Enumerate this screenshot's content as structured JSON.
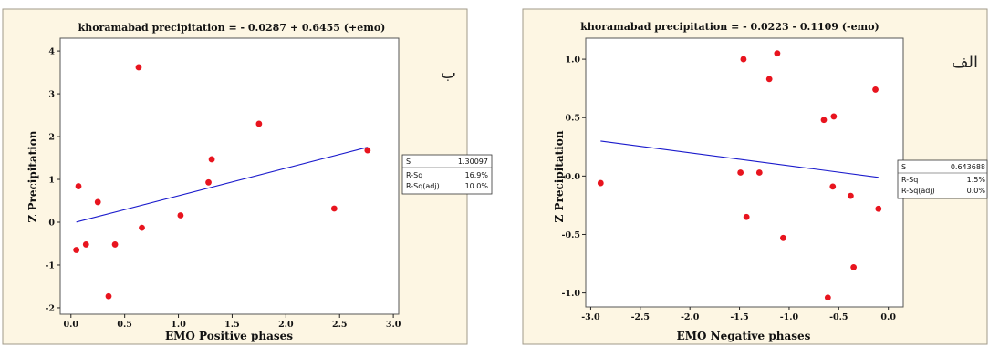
{
  "chart_data": [
    {
      "type": "scatter",
      "title": "khoramabad precipitation =  - 0.0287 + 0.6455 (+emo)",
      "panel_label": "ب",
      "xlabel": "EMO Positive phases",
      "ylabel": "Z Precipitation",
      "xlim": [
        -0.1,
        3.05
      ],
      "ylim": [
        -2.15,
        4.3
      ],
      "xticks": [
        0.0,
        0.5,
        1.0,
        1.5,
        2.0,
        2.5,
        3.0
      ],
      "xtick_labels": [
        "0.0",
        "0.5",
        "1.0",
        "1.5",
        "2.0",
        "2.5",
        "3.0"
      ],
      "yticks": [
        -2,
        -1,
        0,
        1,
        2,
        3,
        4
      ],
      "ytick_labels": [
        "-2",
        "-1",
        "0",
        "1",
        "2",
        "3",
        "4"
      ],
      "points": [
        {
          "x": 0.05,
          "y": -0.65
        },
        {
          "x": 0.07,
          "y": 0.84
        },
        {
          "x": 0.14,
          "y": -0.52
        },
        {
          "x": 0.25,
          "y": 0.47
        },
        {
          "x": 0.35,
          "y": -1.73
        },
        {
          "x": 0.41,
          "y": -0.52
        },
        {
          "x": 0.63,
          "y": 3.62
        },
        {
          "x": 0.66,
          "y": -0.13
        },
        {
          "x": 1.02,
          "y": 0.16
        },
        {
          "x": 1.28,
          "y": 0.93
        },
        {
          "x": 1.31,
          "y": 1.47
        },
        {
          "x": 1.75,
          "y": 2.3
        },
        {
          "x": 2.45,
          "y": 0.32
        },
        {
          "x": 2.76,
          "y": 1.68
        }
      ],
      "fit_line": {
        "intercept": -0.0287,
        "slope": 0.6455,
        "x_start": 0.05,
        "x_end": 2.76
      },
      "stats": [
        {
          "label": "S",
          "value": "1.30097"
        },
        {
          "label": "R-Sq",
          "value": "16.9%"
        },
        {
          "label": "R-Sq(adj)",
          "value": "10.0%"
        }
      ]
    },
    {
      "type": "scatter",
      "title": "khoramabad precipitation =  - 0.0223 - 0.1109 (-emo)",
      "panel_label": "الف",
      "xlabel": "EMO Negative phases",
      "ylabel": "Z Precipitation",
      "xlim": [
        -3.05,
        0.15
      ],
      "ylim": [
        -1.12,
        1.18
      ],
      "xticks": [
        -3.0,
        -2.5,
        -2.0,
        -1.5,
        -1.0,
        -0.5,
        0.0
      ],
      "xtick_labels": [
        "-3.0",
        "-2.5",
        "-2.0",
        "-1.5",
        "-1.0",
        "-0.5",
        "0.0"
      ],
      "yticks": [
        -1.0,
        -0.5,
        0.0,
        0.5,
        1.0
      ],
      "ytick_labels": [
        "-1.0",
        "-0.5",
        "0.0",
        "0.5",
        "1.0"
      ],
      "points": [
        {
          "x": -2.9,
          "y": -0.06
        },
        {
          "x": -1.49,
          "y": 0.03
        },
        {
          "x": -1.46,
          "y": 1.0
        },
        {
          "x": -1.43,
          "y": -0.35
        },
        {
          "x": -1.3,
          "y": 0.03
        },
        {
          "x": -1.2,
          "y": 0.83
        },
        {
          "x": -1.12,
          "y": 1.05
        },
        {
          "x": -1.06,
          "y": -0.53
        },
        {
          "x": -0.65,
          "y": 0.48
        },
        {
          "x": -0.61,
          "y": -1.04
        },
        {
          "x": -0.56,
          "y": -0.09
        },
        {
          "x": -0.55,
          "y": 0.51
        },
        {
          "x": -0.38,
          "y": -0.17
        },
        {
          "x": -0.35,
          "y": -0.78
        },
        {
          "x": -0.13,
          "y": 0.74
        },
        {
          "x": -0.1,
          "y": -0.28
        }
      ],
      "fit_line": {
        "intercept": -0.0223,
        "slope": -0.1109,
        "x_start": -2.9,
        "x_end": -0.1
      },
      "stats": [
        {
          "label": "S",
          "value": "0.643688"
        },
        {
          "label": "R-Sq",
          "value": "1.5%"
        },
        {
          "label": "R-Sq(adj)",
          "value": "0.0%"
        }
      ]
    }
  ]
}
